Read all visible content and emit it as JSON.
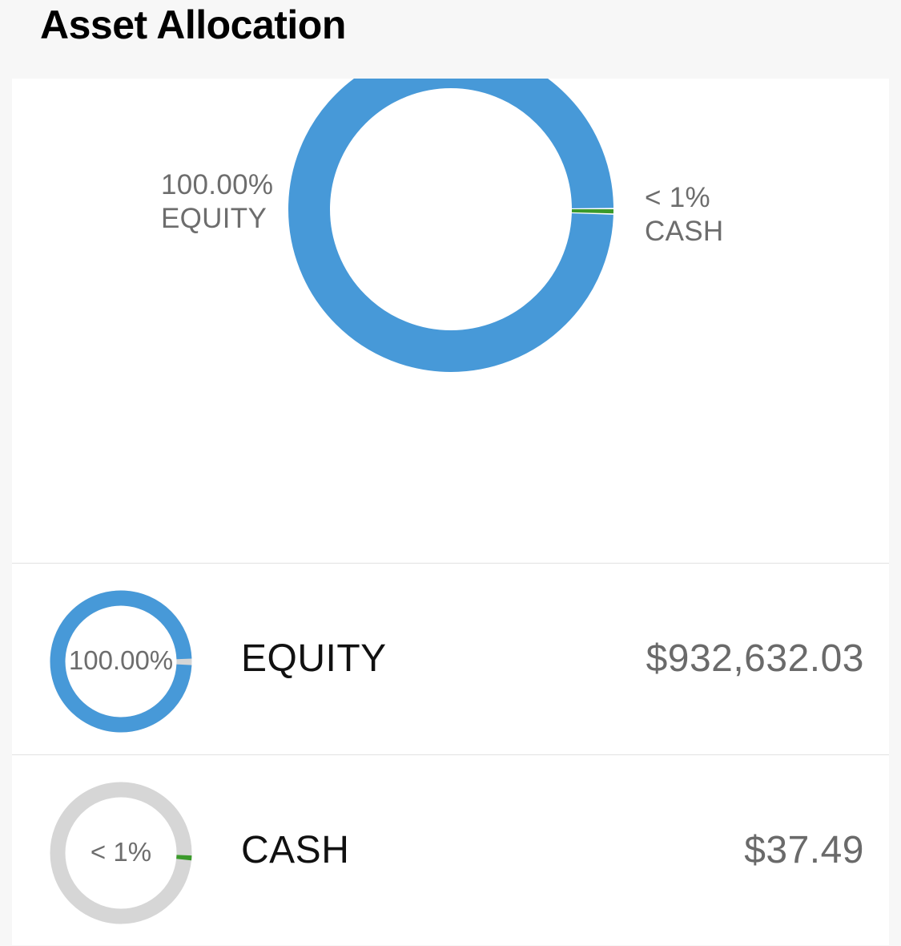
{
  "header": {
    "title": "Asset Allocation"
  },
  "colors": {
    "equity": "#4799d8",
    "cash": "#3b9a2b",
    "track": "#d6d6d6"
  },
  "chart_data": {
    "type": "pie",
    "categories": [
      "EQUITY",
      "CASH"
    ],
    "values": [
      932632.03,
      37.49
    ],
    "percent_labels": [
      "100.00%",
      "< 1%"
    ]
  },
  "donut": {
    "equity_pct": "100.00%",
    "equity_name": "EQUITY",
    "cash_pct": "< 1%",
    "cash_name": "CASH"
  },
  "holdings": [
    {
      "pct": "100.00%",
      "name": "EQUITY",
      "amount": "$932,632.03",
      "color_key": "equity"
    },
    {
      "pct": "< 1%",
      "name": "CASH",
      "amount": "$37.49",
      "color_key": "cash"
    }
  ]
}
